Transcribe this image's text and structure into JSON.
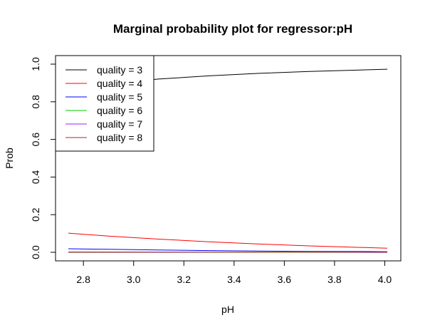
{
  "chart_data": {
    "type": "line",
    "title": "Marginal probability plot for regressor:pH",
    "xlabel": "pH",
    "ylabel": "Prob",
    "xlim": [
      2.74,
      4.01
    ],
    "ylim": [
      0.0,
      1.0
    ],
    "x_ticks": [
      2.8,
      3.0,
      3.2,
      3.4,
      3.6,
      3.8,
      4.0
    ],
    "x_tick_labels": [
      "2.8",
      "3.0",
      "3.2",
      "3.4",
      "3.6",
      "3.8",
      "4.0"
    ],
    "y_ticks": [
      0.0,
      0.2,
      0.4,
      0.6,
      0.8,
      1.0
    ],
    "y_tick_labels": [
      "0.0",
      "0.2",
      "0.4",
      "0.6",
      "0.8",
      "1.0"
    ],
    "grid": false,
    "legend_position": "top-left",
    "x": [
      2.74,
      2.9,
      3.1,
      3.3,
      3.5,
      3.7,
      3.9,
      4.01
    ],
    "series": [
      {
        "name": "quality = 3",
        "color": "#000000",
        "values": [
          0.865,
          0.898,
          0.921,
          0.938,
          0.951,
          0.961,
          0.969,
          0.973
        ]
      },
      {
        "name": "quality = 4",
        "color": "#ff0000",
        "values": [
          0.102,
          0.086,
          0.07,
          0.056,
          0.044,
          0.034,
          0.026,
          0.022
        ]
      },
      {
        "name": "quality = 5",
        "color": "#0000ff",
        "values": [
          0.019,
          0.016,
          0.012,
          0.009,
          0.007,
          0.005,
          0.004,
          0.003
        ]
      },
      {
        "name": "quality = 6",
        "color": "#00cc00",
        "values": [
          0.002,
          0.002,
          0.001,
          0.001,
          0.001,
          0.001,
          0.0,
          0.0
        ]
      },
      {
        "name": "quality = 7",
        "color": "#a020f0",
        "values": [
          0.001,
          0.001,
          0.001,
          0.0,
          0.0,
          0.0,
          0.0,
          0.0
        ]
      },
      {
        "name": "quality = 8",
        "color": "#a52a2a",
        "values": [
          0.0,
          0.0,
          0.0,
          0.0,
          0.0,
          0.0,
          0.0,
          0.0
        ]
      }
    ]
  }
}
